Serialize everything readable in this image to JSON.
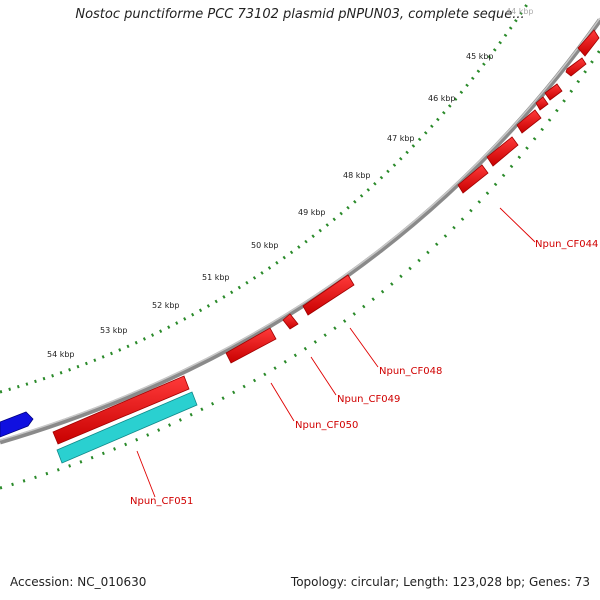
{
  "title": "Nostoc punctiforme PCC 73102 plasmid pNPUN03, complete seque...",
  "footer": {
    "accession": "Accession: NC_010630",
    "summary": "Topology: circular; Length: 123,028 bp; Genes: 73"
  },
  "scale_labels": [
    "44 kbp",
    "45 kbp",
    "46 kbp",
    "47 kbp",
    "48 kbp",
    "49 kbp",
    "50 kbp",
    "51 kbp",
    "52 kbp",
    "53 kbp",
    "54 kbp"
  ],
  "gene_labels": [
    "Npun_CF044",
    "Npun_CF048",
    "Npun_CF049",
    "Npun_CF050",
    "Npun_CF051"
  ],
  "colors": {
    "backbone": "#8c8c8c",
    "reverse_gene": "#e00000",
    "forward_gene": "#0000e0",
    "highlight_gene": "#2ad0d0",
    "tick": "#2a8a2a",
    "label_line": "#e00000"
  }
}
